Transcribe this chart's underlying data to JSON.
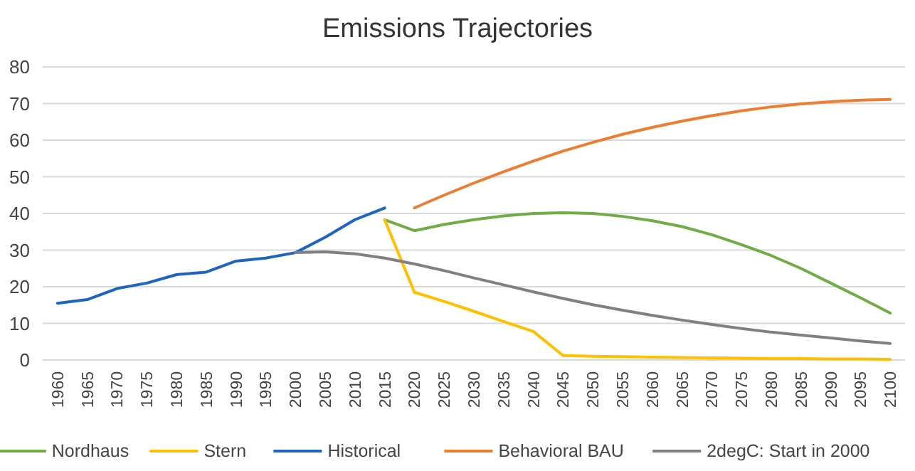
{
  "chart_data": {
    "type": "line",
    "title": "Emissions Trajectories",
    "categories": [
      "1960",
      "1965",
      "1970",
      "1975",
      "1980",
      "1985",
      "1990",
      "1995",
      "2000",
      "2005",
      "2010",
      "2015",
      "2020",
      "2025",
      "2030",
      "2035",
      "2040",
      "2045",
      "2050",
      "2055",
      "2060",
      "2065",
      "2070",
      "2075",
      "2080",
      "2085",
      "2090",
      "2095",
      "2100"
    ],
    "ylim": [
      0,
      80
    ],
    "yticks": [
      0,
      10,
      20,
      30,
      40,
      50,
      60,
      70,
      80
    ],
    "grid": "y",
    "legend": "bottom",
    "line_style": "solid",
    "marker": "none",
    "series": [
      {
        "name": "Nordhaus",
        "color": "#70ad47",
        "values": [
          null,
          null,
          null,
          null,
          null,
          null,
          null,
          null,
          null,
          null,
          null,
          38.3,
          35.3,
          37,
          38.3,
          39.3,
          40,
          40.2,
          40,
          39.2,
          38,
          36.4,
          34.2,
          31.5,
          28.5,
          25,
          21,
          17,
          12.8
        ]
      },
      {
        "name": "Stern",
        "color": "#ffc000",
        "values": [
          null,
          null,
          null,
          null,
          null,
          null,
          null,
          null,
          null,
          null,
          null,
          38.3,
          18.5,
          16,
          13.3,
          10.5,
          7.8,
          1.2,
          1,
          0.9,
          0.8,
          0.7,
          0.6,
          0.5,
          0.4,
          0.4,
          0.3,
          0.3,
          0.2
        ]
      },
      {
        "name": "Historical",
        "color": "#1f64c0",
        "values": [
          15.5,
          16.5,
          19.5,
          21,
          23.3,
          24,
          27,
          27.8,
          29.3,
          33.5,
          38.3,
          41.5,
          null,
          null,
          null,
          null,
          null,
          null,
          null,
          null,
          null,
          null,
          null,
          null,
          null,
          null,
          null,
          null,
          null
        ]
      },
      {
        "name": "Behavioral BAU",
        "color": "#ed7d31",
        "values": [
          null,
          null,
          null,
          null,
          null,
          null,
          null,
          null,
          null,
          null,
          null,
          null,
          41.5,
          45,
          48.3,
          51.4,
          54.3,
          57,
          59.4,
          61.6,
          63.5,
          65.2,
          66.7,
          68,
          69.1,
          69.9,
          70.5,
          70.9,
          71.1
        ]
      },
      {
        "name": "2degC: Start in 2000",
        "color": "#808080",
        "values": [
          null,
          null,
          null,
          null,
          null,
          null,
          null,
          null,
          29.3,
          29.5,
          29,
          27.8,
          26.2,
          24.4,
          22.4,
          20.5,
          18.6,
          16.8,
          15.1,
          13.6,
          12.2,
          10.9,
          9.7,
          8.6,
          7.6,
          6.8,
          6,
          5.2,
          4.5
        ]
      }
    ]
  }
}
